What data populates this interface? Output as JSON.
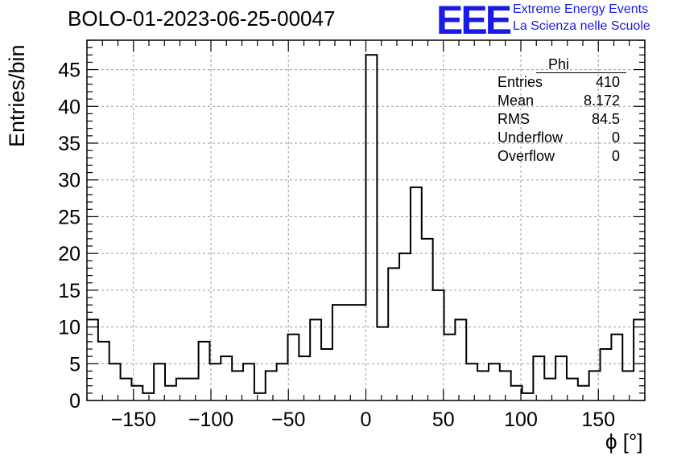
{
  "title": "BOLO-01-2023-06-25-00047",
  "logo": {
    "mark": "EEE",
    "line1": "Extreme Energy Events",
    "line2": "La Scienza nelle Scuole",
    "color": "#1a1ae6"
  },
  "stats_box": {
    "name": "Phi",
    "rows": [
      {
        "label": "Entries",
        "value": "410"
      },
      {
        "label": "Mean",
        "value": "8.172"
      },
      {
        "label": "RMS",
        "value": "84.5"
      },
      {
        "label": "Underflow",
        "value": "0"
      },
      {
        "label": "Overflow",
        "value": "0"
      }
    ]
  },
  "chart_data": {
    "type": "bar",
    "style": "step-histogram",
    "title": "BOLO-01-2023-06-25-00047",
    "xlabel": "ϕ [°]",
    "ylabel": "Entries/bin",
    "xlim": [
      -180,
      180
    ],
    "ylim": [
      0,
      49
    ],
    "bin_width": 7.2,
    "bin_edges_start": -180,
    "values": [
      11,
      8,
      5,
      3,
      2,
      1,
      5,
      2,
      3,
      3,
      8,
      5,
      6,
      4,
      5,
      1,
      4,
      5,
      9,
      6,
      11,
      7,
      13,
      13,
      13,
      47,
      10,
      18,
      20,
      29,
      22,
      15,
      9,
      11,
      5,
      4,
      5,
      4,
      2,
      1,
      6,
      3,
      6,
      3,
      2,
      4,
      7,
      9,
      4,
      11
    ],
    "x_ticks": [
      -150,
      -100,
      -50,
      0,
      50,
      100,
      150
    ],
    "y_ticks": [
      0,
      5,
      10,
      15,
      20,
      25,
      30,
      35,
      40,
      45
    ],
    "grid": true,
    "line_color": "#000000",
    "grid_color": "#9a9a9a"
  }
}
